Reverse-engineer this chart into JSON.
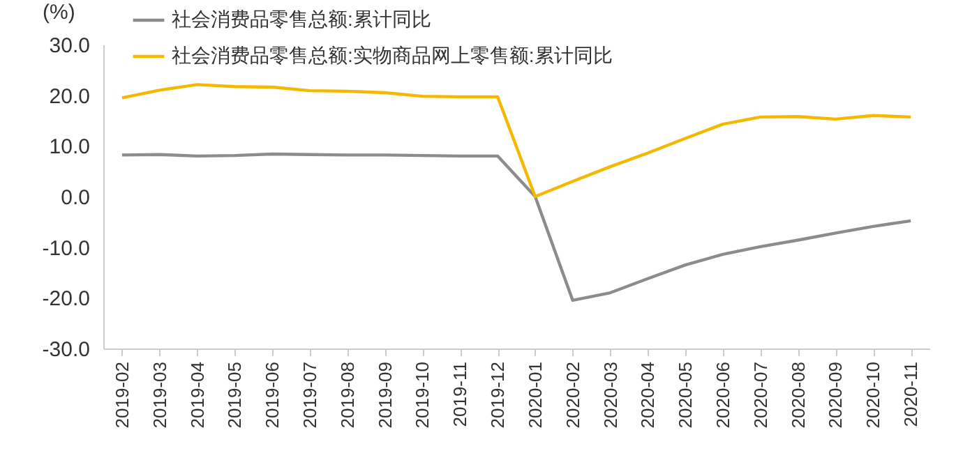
{
  "chart_data": {
    "type": "line",
    "ylabel": "(%)",
    "categories": [
      "2019-02",
      "2019-03",
      "2019-04",
      "2019-05",
      "2019-06",
      "2019-07",
      "2019-08",
      "2019-09",
      "2019-10",
      "2019-11",
      "2019-12",
      "2020-01",
      "2020-02",
      "2020-03",
      "2020-04",
      "2020-05",
      "2020-06",
      "2020-07",
      "2020-08",
      "2020-09",
      "2020-10",
      "2020-11"
    ],
    "series": [
      {
        "name": "社会消费品零售总额:累计同比",
        "color": "#8c8c8c",
        "values": [
          8.2,
          8.3,
          8.0,
          8.1,
          8.4,
          8.3,
          8.2,
          8.2,
          8.1,
          8.0,
          8.0,
          0,
          -20.5,
          -19.0,
          -16.2,
          -13.5,
          -11.4,
          -9.9,
          -8.6,
          -7.2,
          -5.9,
          -4.8
        ]
      },
      {
        "name": "社会消费品零售总额:实物商品网上零售额:累计同比",
        "color": "#f5b800",
        "values": [
          19.5,
          21.0,
          22.1,
          21.7,
          21.6,
          20.9,
          20.8,
          20.5,
          19.8,
          19.7,
          19.7,
          0,
          3.0,
          5.9,
          8.6,
          11.5,
          14.3,
          15.7,
          15.8,
          15.3,
          16.0,
          15.7
        ]
      }
    ],
    "ylim": [
      -30,
      30
    ],
    "yticks": [
      {
        "value": -30,
        "label": "-30.0"
      },
      {
        "value": -20,
        "label": "-20.0"
      },
      {
        "value": -10,
        "label": "-10.0"
      },
      {
        "value": 0,
        "label": "0.0"
      },
      {
        "value": 10,
        "label": "10.0"
      },
      {
        "value": 20,
        "label": "20.0"
      },
      {
        "value": 30,
        "label": "30.0"
      }
    ],
    "legend": "top",
    "grid": false,
    "marker": "none",
    "line_style": "solid"
  }
}
